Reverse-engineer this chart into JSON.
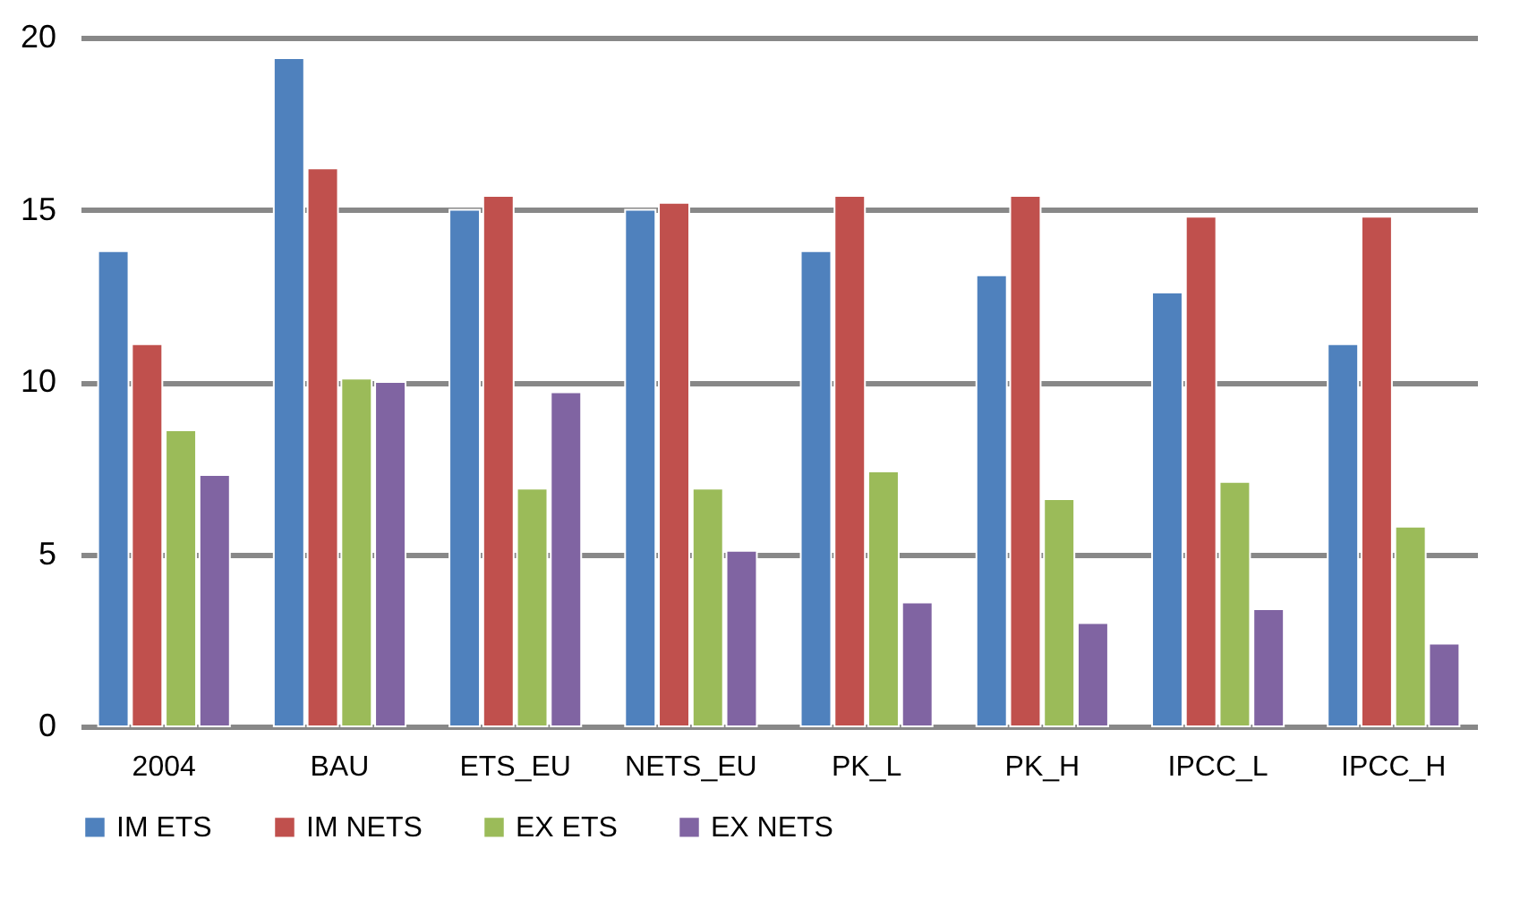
{
  "chart_data": {
    "type": "bar",
    "categories": [
      "2004",
      "BAU",
      "ETS_EU",
      "NETS_EU",
      "PK_L",
      "PK_H",
      "IPCC_L",
      "IPCC_H"
    ],
    "series": [
      {
        "name": "IM ETS",
        "color": "#4f81bd",
        "values": [
          13.8,
          19.4,
          15.0,
          15.0,
          13.8,
          13.1,
          12.6,
          11.1
        ]
      },
      {
        "name": "IM NETS",
        "color": "#c0504d",
        "values": [
          11.1,
          16.2,
          15.4,
          15.2,
          15.4,
          15.4,
          14.8,
          14.8
        ]
      },
      {
        "name": "EX ETS",
        "color": "#9bbb59",
        "values": [
          8.6,
          10.1,
          6.9,
          6.9,
          7.4,
          6.6,
          7.1,
          5.8
        ]
      },
      {
        "name": "EX NETS",
        "color": "#8064a2",
        "values": [
          7.3,
          10.0,
          9.7,
          5.1,
          3.6,
          3.0,
          3.4,
          2.4
        ]
      }
    ],
    "ylim": [
      0,
      20
    ],
    "yticks": [
      0,
      5,
      10,
      15,
      20
    ],
    "grid": "y",
    "legend": "bottom"
  }
}
